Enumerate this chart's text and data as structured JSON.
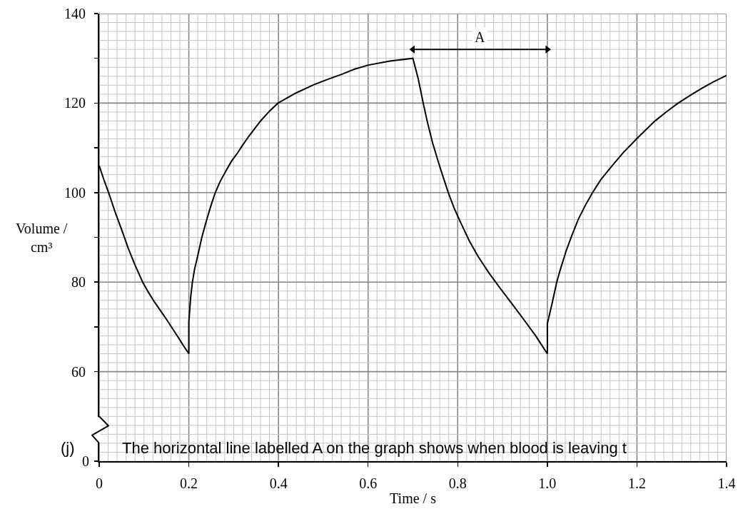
{
  "chart_data": {
    "type": "line",
    "xlabel": "Time / s",
    "ylabel": "Volume / cm³",
    "annotations": [
      {
        "text": "A",
        "x": 0.85,
        "y": 132
      },
      "(j)",
      "The horizontal line labelled A on the graph shows when blood is leaving t",
      "0"
    ],
    "xlim": [
      0,
      1.4
    ],
    "xticks": [
      0,
      0.2,
      0.4,
      0.6,
      0.8,
      {
        "value": 1,
        "label": "1.0"
      },
      1.2,
      1.4
    ],
    "ylim": [
      40,
      140
    ],
    "yticks": [
      {
        "value": 40,
        "label": null
      },
      60,
      {
        "value": 70,
        "label": null
      },
      80,
      {
        "value": 90,
        "label": null
      },
      100,
      {
        "value": 110,
        "label": null
      },
      120,
      {
        "value": 130,
        "label": null
      },
      140
    ],
    "grid": true,
    "marker": "none",
    "line_style": "solid",
    "series": [
      {
        "color": "#000000",
        "x": [
          0,
          0.01,
          0.021,
          0.035,
          0.049,
          0.065,
          0.08,
          0.097,
          0.11,
          0.123,
          0.137,
          0.15,
          0.163,
          0.176,
          0.188,
          0.2,
          0.2,
          0.204,
          0.208,
          0.213,
          0.219,
          0.229,
          0.24,
          0.249,
          0.259,
          0.27,
          0.282,
          0.295,
          0.309,
          0.32,
          0.334,
          0.36,
          0.38,
          0.399,
          0.44,
          0.479,
          0.51,
          0.543,
          0.57,
          0.601,
          0.649,
          0.7,
          0.712,
          0.723,
          0.733,
          0.744,
          0.76,
          0.779,
          0.793,
          0.808,
          0.826,
          0.845,
          0.87,
          0.895,
          0.92,
          0.947,
          0.974,
          1.0,
          1.0,
          1.011,
          1.021,
          1.029,
          1.042,
          1.055,
          1.069,
          1.085,
          1.101,
          1.12,
          1.143,
          1.17,
          1.2,
          1.239,
          1.265,
          1.292,
          1.32,
          1.345,
          1.37,
          1.4
        ],
        "values": [
          106,
          103,
          100,
          95.8,
          92,
          87.5,
          83.8,
          80,
          77.7,
          75.6,
          73.6,
          71.7,
          69.7,
          67.7,
          65.8,
          64,
          71,
          76.5,
          80,
          83,
          85.5,
          90,
          94,
          97,
          100,
          102.5,
          104.7,
          107,
          108.9,
          110.6,
          112.6,
          116,
          118.2,
          120,
          122.3,
          124.1,
          125.3,
          126.5,
          127.6,
          128.5,
          129.4,
          130,
          125.4,
          120,
          115.5,
          111.1,
          105.8,
          100,
          96.3,
          93,
          89.2,
          85.8,
          82,
          78.6,
          75.3,
          71.7,
          68,
          64,
          70.7,
          75.4,
          80,
          82.8,
          87,
          90.5,
          94,
          97.2,
          100,
          103,
          105.8,
          109,
          112.1,
          115.9,
          118,
          120,
          121.8,
          123.3,
          124.7,
          126.2
        ]
      },
      {
        "color": "#000000",
        "x": [
          0.7,
          1.0
        ],
        "values": [
          132,
          132
        ],
        "marker": "triangle"
      }
    ]
  }
}
